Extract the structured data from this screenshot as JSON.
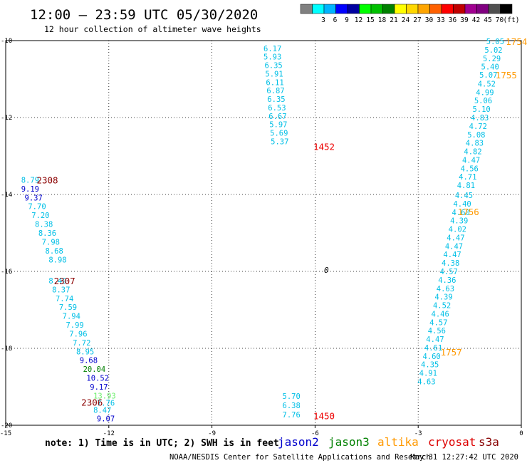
{
  "header": {
    "title": "12:00 – 23:59 UTC 05/30/2020",
    "subtitle": "12 hour collection of altimeter wave heights"
  },
  "color_scale": {
    "bins": [
      {
        "color": "#808080",
        "label": ""
      },
      {
        "color": "#00ffff",
        "label": "3"
      },
      {
        "color": "#00b4ff",
        "label": "6"
      },
      {
        "color": "#0000ff",
        "label": "9"
      },
      {
        "color": "#0000a0",
        "label": "12"
      },
      {
        "color": "#00ff00",
        "label": "15"
      },
      {
        "color": "#00c000",
        "label": "18"
      },
      {
        "color": "#008000",
        "label": "21"
      },
      {
        "color": "#ffff00",
        "label": "24"
      },
      {
        "color": "#ffd700",
        "label": "27"
      },
      {
        "color": "#ffa500",
        "label": "30"
      },
      {
        "color": "#ff6000",
        "label": "33"
      },
      {
        "color": "#ff0000",
        "label": "36"
      },
      {
        "color": "#c00000",
        "label": "39"
      },
      {
        "color": "#a00090",
        "label": "42"
      },
      {
        "color": "#800080",
        "label": "45"
      },
      {
        "color": "#505050",
        "label": "70"
      },
      {
        "color": "#000000",
        "label": "(ft)"
      }
    ]
  },
  "footer": {
    "note": "note: 1) Time is in UTC; 2) SWH is in feet",
    "satellites": [
      {
        "name": "jason2",
        "color": "#0000cc"
      },
      {
        "name": "jason3",
        "color": "#008000"
      },
      {
        "name": "altika",
        "color": "#ff9900"
      },
      {
        "name": "cryosat",
        "color": "#dd0000"
      },
      {
        "name": "s3a",
        "color": "#880000"
      }
    ],
    "credit": "NOAA/NESDIS Center for Satellite Applications and Research",
    "timestamp": "May 31 12:27:42 UTC 2020"
  },
  "chart_data": {
    "type": "scatter",
    "title": "12:00 – 23:59 UTC 05/30/2020",
    "xlim": [
      -15,
      0
    ],
    "ylim": [
      -20,
      -10
    ],
    "x_ticks": [
      "-15",
      "-12",
      "-9",
      "-6",
      "-3",
      "0"
    ],
    "y_ticks": [
      "-10",
      "-12",
      "-14",
      "-16",
      "-18",
      "-20"
    ],
    "grid": "dotted",
    "land_label": "0",
    "tracks": [
      {
        "color": "#00bfe6",
        "labels": [
          {
            "t": "1452",
            "x": -6.05,
            "y": -12.75,
            "color": "#ee0000"
          }
        ],
        "points": [
          [
            "6.17",
            -7.5,
            -10.2
          ],
          [
            "5.93",
            -7.5,
            -10.42
          ],
          [
            "6.35",
            -7.47,
            -10.64
          ],
          [
            "5.91",
            -7.45,
            -10.86
          ],
          [
            "6.11",
            -7.43,
            -11.08
          ],
          [
            "6.87",
            -7.41,
            -11.3
          ],
          [
            "6.35",
            -7.39,
            -11.52
          ],
          [
            "6.53",
            -7.37,
            -11.74
          ],
          [
            "6.67",
            -7.35,
            -11.96
          ],
          [
            "5.97",
            -7.33,
            -12.18
          ],
          [
            "5.69",
            -7.31,
            -12.4
          ],
          [
            "5.37",
            -7.29,
            -12.62
          ]
        ]
      },
      {
        "color": "#00bfe6",
        "labels": [
          {
            "t": "1754",
            "x": -0.45,
            "y": -10.02,
            "color": "#ff9900"
          },
          {
            "t": "1755",
            "x": -0.75,
            "y": -10.89,
            "color": "#ff9900"
          },
          {
            "t": "1756",
            "x": -1.85,
            "y": -14.44,
            "color": "#ff9900"
          },
          {
            "t": "1757",
            "x": -2.35,
            "y": -18.09,
            "color": "#ff9900"
          }
        ],
        "points": [
          [
            "5.05",
            -1.02,
            -10.02
          ],
          [
            "5.02",
            -1.07,
            -10.24
          ],
          [
            "5.29",
            -1.12,
            -10.46
          ],
          [
            "5.40",
            -1.17,
            -10.68
          ],
          [
            "5.07",
            -1.22,
            -10.89
          ],
          [
            "4.52",
            -1.27,
            -11.12
          ],
          [
            "4.99",
            -1.32,
            -11.34
          ],
          [
            "5.06",
            -1.37,
            -11.56
          ],
          [
            "5.10",
            -1.42,
            -11.78
          ],
          [
            "4.83",
            -1.47,
            -12.0
          ],
          [
            "4.72",
            -1.52,
            -12.22
          ],
          [
            "5.08",
            -1.57,
            -12.44
          ],
          [
            "4.83",
            -1.62,
            -12.66
          ],
          [
            "4.82",
            -1.67,
            -12.88
          ],
          [
            "4.47",
            -1.72,
            -13.1
          ],
          [
            "4.56",
            -1.77,
            -13.32
          ],
          [
            "4.71",
            -1.82,
            -13.54
          ],
          [
            "4.81",
            -1.87,
            -13.76
          ],
          [
            "4.45",
            -1.93,
            -14.02
          ],
          [
            "4.40",
            -1.98,
            -14.24
          ],
          [
            "4.60",
            -2.02,
            -14.46
          ],
          [
            "4.39",
            -2.07,
            -14.68
          ],
          [
            "4.02",
            -2.12,
            -14.9
          ],
          [
            "4.47",
            -2.17,
            -15.12
          ],
          [
            "4.47",
            -2.22,
            -15.34
          ],
          [
            "4.47",
            -2.27,
            -15.56
          ],
          [
            "4.38",
            -2.32,
            -15.78
          ],
          [
            "4.57",
            -2.37,
            -16.0
          ],
          [
            "4.36",
            -2.42,
            -16.22
          ],
          [
            "4.63",
            -2.47,
            -16.44
          ],
          [
            "4.39",
            -2.52,
            -16.66
          ],
          [
            "4.52",
            -2.57,
            -16.88
          ],
          [
            "4.46",
            -2.62,
            -17.1
          ],
          [
            "4.57",
            -2.67,
            -17.32
          ],
          [
            "4.56",
            -2.72,
            -17.54
          ],
          [
            "4.47",
            -2.77,
            -17.76
          ],
          [
            "4.61",
            -2.82,
            -17.98
          ],
          [
            "4.60",
            -2.87,
            -18.2
          ],
          [
            "4.35",
            -2.92,
            -18.42
          ],
          [
            "4.91",
            -2.97,
            -18.64
          ],
          [
            "4.63",
            -3.02,
            -18.86
          ]
        ]
      },
      {
        "color": "#00bfe6",
        "labels": [
          {
            "t": "1450",
            "x": -6.05,
            "y": -19.75,
            "color": "#ee0000"
          }
        ],
        "points": [
          [
            "5.70",
            -6.95,
            -19.24
          ],
          [
            "6.38",
            -6.95,
            -19.48
          ],
          [
            "7.76",
            -6.95,
            -19.72
          ]
        ]
      },
      {
        "color": "#00bfe6",
        "labels": [
          {
            "t": "2308",
            "x": -14.1,
            "y": -13.62,
            "color": "#8b0000"
          },
          {
            "t": "2307",
            "x": -13.6,
            "y": -16.24,
            "color": "#8b0000"
          },
          {
            "t": "2306",
            "x": -12.8,
            "y": -19.4,
            "color": "#8b0000"
          }
        ],
        "points": [
          [
            "8.79",
            -14.55,
            -13.62,
            "#00bfe6"
          ],
          [
            "9.19",
            -14.55,
            -13.85,
            "#0000cc"
          ],
          [
            "9.37",
            -14.45,
            -14.08,
            "#0000cc"
          ],
          [
            "7.70",
            -14.35,
            -14.31,
            "#00bfe6"
          ],
          [
            "7.20",
            -14.25,
            -14.54,
            "#00bfe6"
          ],
          [
            "8.38",
            -14.15,
            -14.77,
            "#00bfe6"
          ],
          [
            "8.36",
            -14.05,
            -15.0,
            "#00bfe6"
          ],
          [
            "7.98",
            -13.95,
            -15.23,
            "#00bfe6"
          ],
          [
            "8.68",
            -13.85,
            -15.46,
            "#00bfe6"
          ],
          [
            "8.98",
            -13.75,
            -15.69,
            "#00bfe6"
          ],
          [
            "8.49",
            -13.75,
            -16.24,
            "#00bfe6"
          ],
          [
            "8.37",
            -13.65,
            -16.47,
            "#00bfe6"
          ],
          [
            "7.74",
            -13.55,
            -16.7,
            "#00bfe6"
          ],
          [
            "7.59",
            -13.45,
            -16.93,
            "#00bfe6"
          ],
          [
            "7.94",
            -13.35,
            -17.16,
            "#00bfe6"
          ],
          [
            "7.99",
            -13.25,
            -17.39,
            "#00bfe6"
          ],
          [
            "7.96",
            -13.15,
            -17.62,
            "#00bfe6"
          ],
          [
            "7.72",
            -13.05,
            -17.85,
            "#00bfe6"
          ],
          [
            "8.95",
            -12.95,
            -18.08,
            "#00bfe6"
          ],
          [
            "9.68",
            -12.85,
            -18.31,
            "#0000cc"
          ],
          [
            "20.04",
            -12.75,
            -18.54,
            "#008000"
          ],
          [
            "10.52",
            -12.65,
            -18.77,
            "#0000cc"
          ],
          [
            "9.17",
            -12.55,
            -19.0,
            "#0000cc"
          ],
          [
            "13.93",
            -12.45,
            -19.23,
            "#66ee66"
          ],
          [
            "7.76",
            -12.35,
            -19.42,
            "#00bfe6"
          ],
          [
            "8.47",
            -12.45,
            -19.6,
            "#00bfe6"
          ],
          [
            "9.07",
            -12.35,
            -19.82,
            "#0000cc"
          ]
        ]
      }
    ]
  }
}
